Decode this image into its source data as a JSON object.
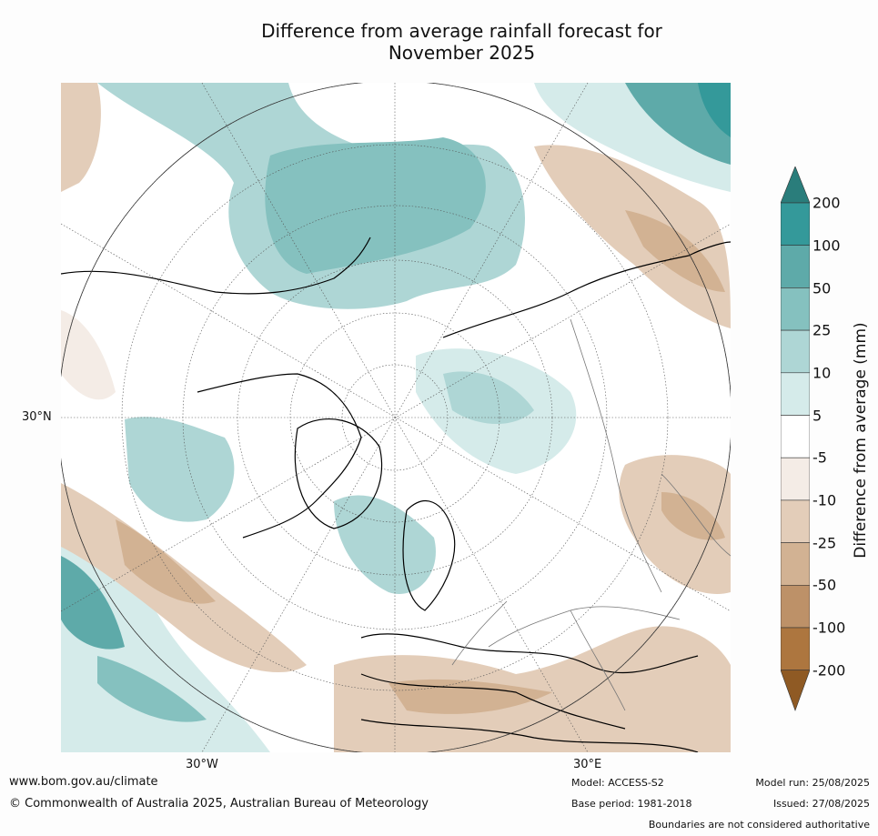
{
  "title": {
    "line1": "Difference from average rainfall forecast for",
    "line2": "November 2025"
  },
  "map": {
    "projection": "north-polar-stereographic",
    "lat_label": "30°N",
    "lon_labels": {
      "west": "30°W",
      "east": "30°E"
    }
  },
  "colorbar": {
    "title": "Difference from average (mm)",
    "ticks": [
      "200",
      "100",
      "50",
      "25",
      "10",
      "5",
      "-5",
      "-10",
      "-25",
      "-50",
      "-100",
      "-200"
    ],
    "colors": {
      "above_200": "#2a7d7b",
      "100_200": "#34999a",
      "50_100": "#5eaaa9",
      "25_50": "#85c1bf",
      "10_25": "#aed6d5",
      "5_10": "#d5ebea",
      "neutral": "#ffffff",
      "m5_m10": "#f4ece6",
      "m10_m25": "#e3cdb9",
      "m25_m50": "#d2b293",
      "m50_m100": "#bd9168",
      "m100_m200": "#ad763f",
      "below_m200": "#8f5a24"
    }
  },
  "footer": {
    "website": "www.bom.gov.au/climate",
    "copyright": "© Commonwealth of Australia 2025, Australian Bureau of Meteorology",
    "model": "Model: ACCESS-S2",
    "base_period": "Base period: 1981-2018",
    "model_run": "Model run: 25/08/2025",
    "issued": "Issued: 27/08/2025",
    "disclaimer": "Boundaries are not considered authoritative"
  }
}
